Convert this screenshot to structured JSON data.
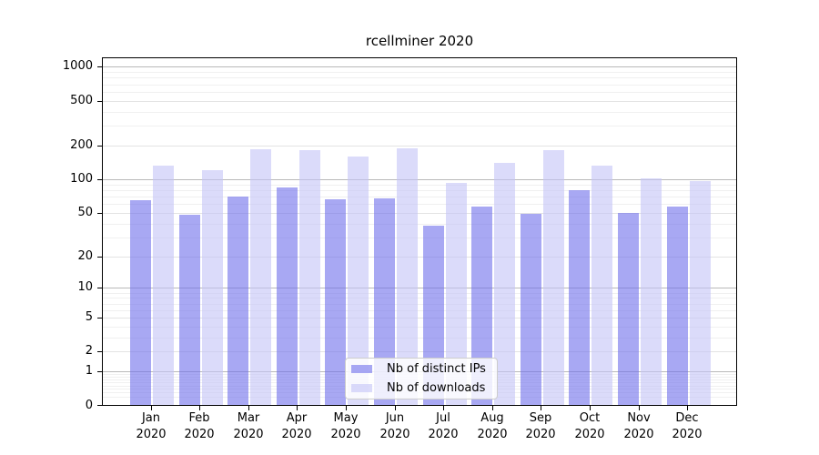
{
  "title": "rcellminer 2020",
  "chart_data": {
    "type": "bar",
    "title": "rcellminer 2020",
    "yscale": "log1p",
    "grid": true,
    "legend_position": "lower center",
    "categories": [
      "Jan",
      "Feb",
      "Mar",
      "Apr",
      "May",
      "Jun",
      "Jul",
      "Aug",
      "Sep",
      "Oct",
      "Nov",
      "Dec"
    ],
    "x_sublabel": "2020",
    "y_ticks": [
      1000,
      500,
      200,
      100,
      50,
      20,
      10,
      5,
      2,
      1,
      0
    ],
    "ylim": [
      0,
      1215
    ],
    "series": [
      {
        "name": "Nb of distinct IPs",
        "color": "rgba(110,110,235,0.6)",
        "values": [
          65,
          48,
          70,
          85,
          66,
          67,
          38,
          57,
          49,
          80,
          50,
          57
        ]
      },
      {
        "name": "Nb of downloads",
        "color": "rgba(195,195,247,0.6)",
        "values": [
          133,
          120,
          185,
          183,
          160,
          190,
          92,
          140,
          183,
          133,
          102,
          96
        ]
      }
    ],
    "grid_colors": {
      "major": "#b9b9b9",
      "labeled_minor": "#e3e3e3",
      "minor": "#f0f0f0"
    }
  }
}
